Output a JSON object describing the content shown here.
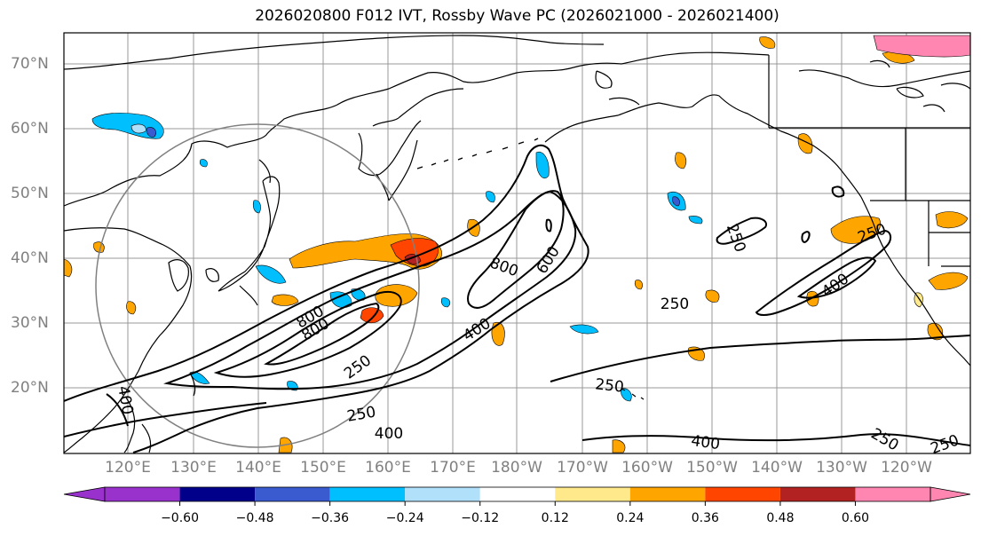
{
  "title": "2026020800 F012 IVT, Rossby Wave PC (2026021000 - 2026021400)",
  "lat_labels": [
    "70°N",
    "60°N",
    "50°N",
    "40°N",
    "30°N",
    "20°N"
  ],
  "lon_labels": [
    "120°E",
    "130°E",
    "140°E",
    "150°E",
    "160°E",
    "170°E",
    "180°W",
    "170°W",
    "160°W",
    "150°W",
    "140°W",
    "130°W",
    "120°W"
  ],
  "contour_labels": [
    "800",
    "600",
    "800",
    "800",
    "400",
    "250",
    "250",
    "400",
    "250",
    "400",
    "400",
    "250",
    "250",
    "250",
    "400",
    "250",
    "250",
    "400"
  ],
  "colorbar": {
    "ticks": [
      "−0.60",
      "−0.48",
      "−0.36",
      "−0.24",
      "−0.12",
      "0.12",
      "0.24",
      "0.36",
      "0.48",
      "0.60"
    ],
    "colors": [
      "#9932cc",
      "#00008b",
      "#3a5bd0",
      "#00bfff",
      "#b0e0fa",
      "#ffffff",
      "#ffe98a",
      "#ffa500",
      "#ff4500",
      "#b22222",
      "#ff86b0"
    ]
  },
  "colors": {
    "frame": "#000000",
    "grid": "#999999",
    "circle": "#808080",
    "label": "#808080"
  }
}
